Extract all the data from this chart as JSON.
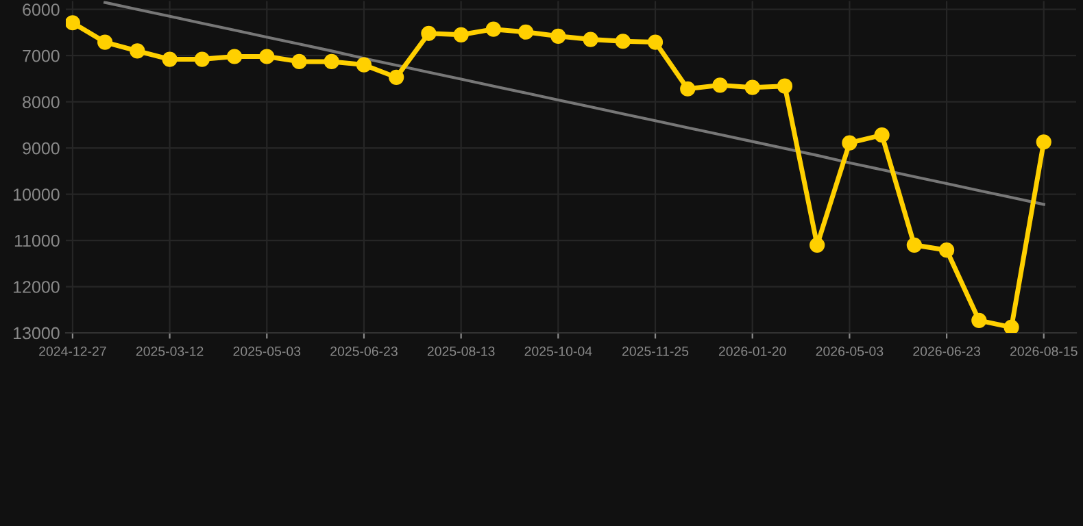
{
  "chart_data": {
    "type": "line",
    "categories": [
      "2024-12-27",
      null,
      null,
      "2025-03-12",
      null,
      null,
      "2025-05-03",
      null,
      null,
      "2025-06-23",
      null,
      null,
      "2025-08-13",
      null,
      null,
      "2025-10-04",
      null,
      null,
      "2025-11-25",
      null,
      null,
      "2026-01-20",
      null,
      null,
      "2026-05-03",
      null,
      null,
      "2026-06-23",
      null,
      null,
      "2026-08-15"
    ],
    "series": [
      {
        "color": "#ffd000",
        "marker": "circle",
        "values": [
          6290,
          6710,
          6900,
          7080,
          7080,
          7020,
          7020,
          7130,
          7130,
          7200,
          7470,
          6520,
          6550,
          6430,
          6490,
          6580,
          6650,
          6690,
          6710,
          7720,
          7640,
          7690,
          7660,
          11100,
          8890,
          8720,
          11100,
          11210,
          12730,
          12880,
          8870
        ]
      },
      {
        "type": "line",
        "color": "#777777",
        "marker": "none",
        "values": [
          null,
          5850,
          6000,
          6150,
          6300,
          6450,
          6600,
          6750,
          6900,
          7060,
          7210,
          7360,
          7510,
          7660,
          7810,
          7960,
          8110,
          8260,
          8410,
          8560,
          8710,
          8860,
          9010,
          9160,
          9320,
          9470,
          9620,
          9770,
          9920,
          10070,
          10220
        ]
      }
    ],
    "ylim": [
      13000,
      5820
    ],
    "yticks": [
      6000,
      7000,
      8000,
      9000,
      10000,
      11000,
      12000,
      13000
    ],
    "grid": true
  }
}
